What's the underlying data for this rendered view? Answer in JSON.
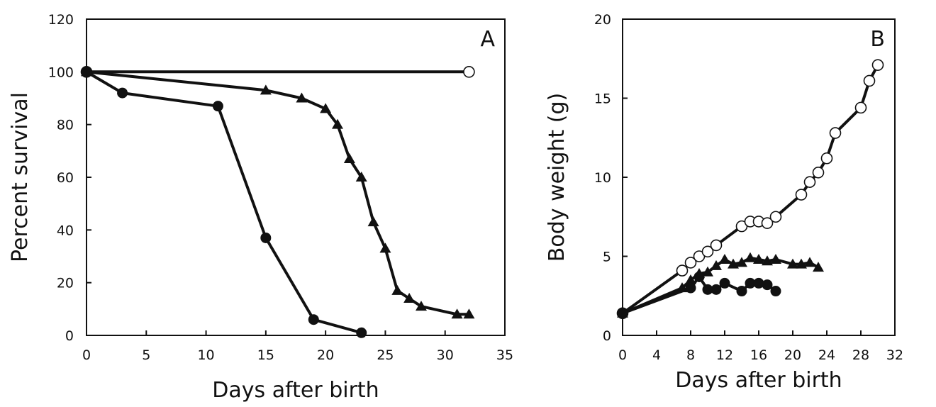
{
  "chart_data": [
    {
      "type": "line",
      "panel_label": "A",
      "xlabel": "Days after birth",
      "ylabel": "Percent survival",
      "xlim": [
        0,
        35
      ],
      "ylim": [
        0,
        120
      ],
      "xticks": [
        "0",
        "5",
        "10",
        "15",
        "20",
        "25",
        "30",
        "35"
      ],
      "yticks": [
        "0",
        "20",
        "40",
        "60",
        "80",
        "100",
        "120"
      ],
      "grid": false,
      "series": [
        {
          "marker": "open-circle",
          "x": [
            0,
            32
          ],
          "y": [
            100,
            100
          ]
        },
        {
          "marker": "filled-triangle",
          "x": [
            0,
            15,
            18,
            20,
            21,
            22,
            23,
            24,
            25,
            26,
            27,
            28,
            31,
            32
          ],
          "y": [
            100,
            93,
            90,
            86,
            80,
            67,
            60,
            43,
            33,
            17,
            14,
            11,
            8,
            8
          ]
        },
        {
          "marker": "filled-circle",
          "x": [
            0,
            3,
            11,
            15,
            19,
            23
          ],
          "y": [
            100,
            92,
            87,
            37,
            6,
            1
          ]
        }
      ]
    },
    {
      "type": "line",
      "panel_label": "B",
      "xlabel": "Days after birth",
      "ylabel": "Body weight (g)",
      "xlim": [
        0,
        32
      ],
      "ylim": [
        0,
        20
      ],
      "xticks": [
        "0",
        "4",
        "8",
        "12",
        "16",
        "20",
        "24",
        "28",
        "32"
      ],
      "yticks": [
        "0",
        "5",
        "10",
        "15",
        "20"
      ],
      "grid": false,
      "series": [
        {
          "marker": "open-circle",
          "x": [
            0,
            7,
            8,
            9,
            10,
            11,
            14,
            15,
            16,
            17,
            18,
            21,
            22,
            23,
            24,
            25,
            28,
            29,
            30
          ],
          "y": [
            1.4,
            4.1,
            4.6,
            5.0,
            5.3,
            5.7,
            6.9,
            7.2,
            7.2,
            7.1,
            7.5,
            8.9,
            9.7,
            10.3,
            11.2,
            12.8,
            14.4,
            16.1,
            17.1
          ]
        },
        {
          "marker": "filled-triangle",
          "x": [
            0,
            7,
            8,
            9,
            10,
            11,
            12,
            13,
            14,
            15,
            16,
            17,
            18,
            20,
            21,
            22,
            23
          ],
          "y": [
            1.4,
            3.0,
            3.5,
            3.9,
            4.0,
            4.4,
            4.8,
            4.5,
            4.6,
            4.9,
            4.8,
            4.7,
            4.8,
            4.5,
            4.5,
            4.6,
            4.3
          ]
        },
        {
          "marker": "filled-circle",
          "x": [
            0,
            8,
            9,
            10,
            11,
            12,
            14,
            15,
            16,
            17,
            18
          ],
          "y": [
            1.4,
            3.0,
            3.7,
            2.9,
            2.9,
            3.3,
            2.8,
            3.3,
            3.3,
            3.2,
            2.8
          ]
        }
      ]
    }
  ]
}
